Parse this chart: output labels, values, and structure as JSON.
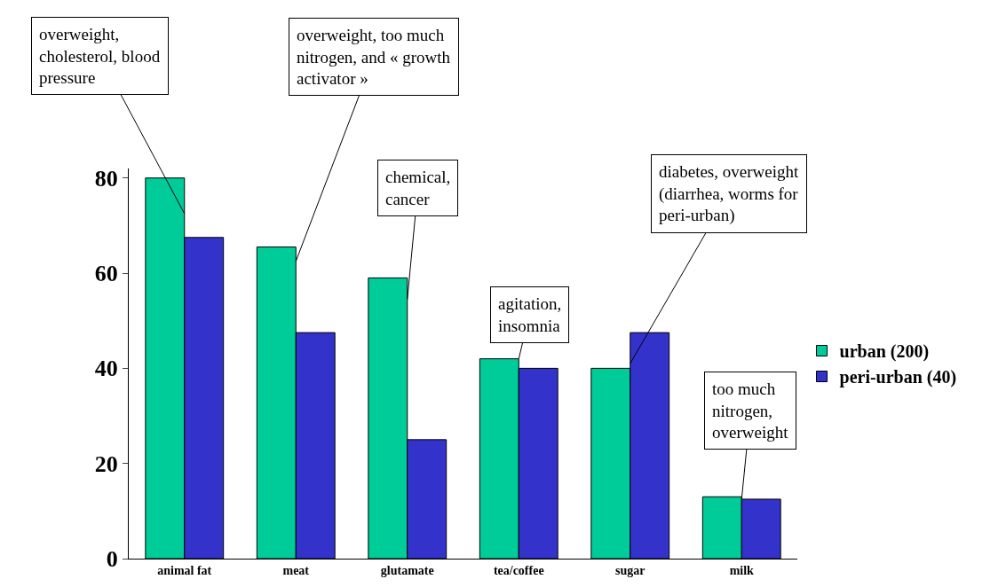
{
  "chart_data": {
    "type": "bar",
    "categories": [
      "animal fat",
      "meat",
      "glutamate",
      "tea/coffee",
      "sugar",
      "milk"
    ],
    "series": [
      {
        "name": "urban (200)",
        "color": "#00cc99",
        "values": [
          80,
          65.5,
          59,
          42,
          40,
          13
        ]
      },
      {
        "name": "peri-urban (40)",
        "color": "#3333cc",
        "values": [
          67.5,
          47.5,
          25,
          40,
          47.5,
          12.5
        ]
      }
    ],
    "ylim": [
      0,
      82
    ],
    "yticks": [
      0,
      20,
      40,
      60,
      80
    ],
    "grid": false,
    "legend": "right",
    "annotations": [
      {
        "text": "overweight, cholesterol, blood pressure",
        "x": "animal fat",
        "y": 72.5
      },
      {
        "text": "overweight, too much nitrogen, and « growth activator »",
        "x": "meat",
        "y": 62.5
      },
      {
        "text": "chemical, cancer",
        "x": "glutamate",
        "y": 54.5
      },
      {
        "text": "agitation, insomnia",
        "x": "tea/coffee",
        "y": 42
      },
      {
        "text": "diabetes, overweight (diarrhea, worms for peri-urban)",
        "x": "sugar",
        "y": 41
      },
      {
        "text": "too much nitrogen, overweight",
        "x": "milk",
        "y": 12.5
      }
    ]
  }
}
